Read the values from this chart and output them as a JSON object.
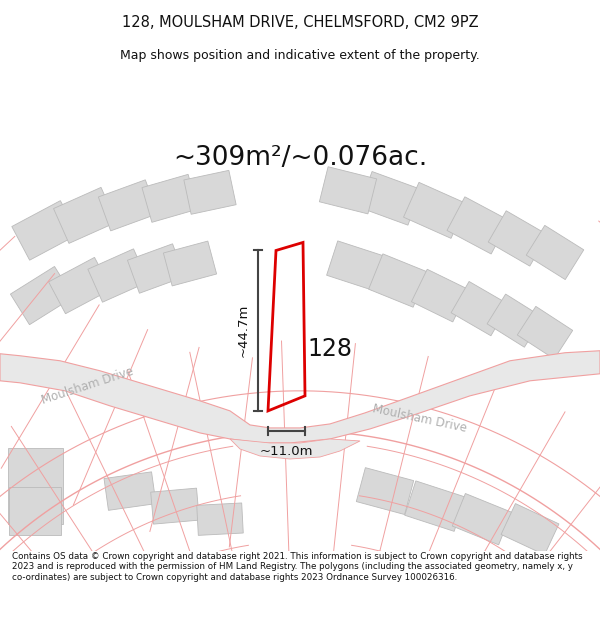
{
  "title_line1": "128, MOULSHAM DRIVE, CHELMSFORD, CM2 9PZ",
  "title_line2": "Map shows position and indicative extent of the property.",
  "area_text": "~309m²/~0.076ac.",
  "number_label": "128",
  "dim_vertical": "~44.7m",
  "dim_horizontal": "~11.0m",
  "road_label_left": "Moulsham Drive",
  "road_label_right": "Moulsham Drive",
  "footer_text": "Contains OS data © Crown copyright and database right 2021. This information is subject to Crown copyright and database rights 2023 and is reproduced with the permission of HM Land Registry. The polygons (including the associated geometry, namely x, y co-ordinates) are subject to Crown copyright and database rights 2023 Ordnance Survey 100026316.",
  "bg_color": "#ffffff",
  "map_bg": "#f9f9f9",
  "road_fill": "#e8e8e8",
  "plot_outline_color": "#dd0000",
  "building_color": "#d8d8d8",
  "road_line_color": "#f0a0a0",
  "dim_line_color": "#444444",
  "text_color": "#111111",
  "road_text_color": "#b0b0b0"
}
